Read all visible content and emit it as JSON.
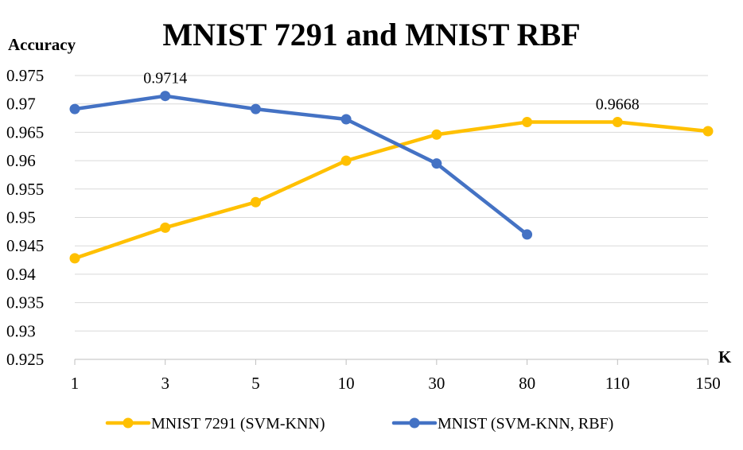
{
  "chart_data": {
    "type": "line",
    "title": "MNIST 7291 and MNIST RBF",
    "ylabel": "Accuracy",
    "xlabel": "K",
    "categories": [
      "1",
      "3",
      "5",
      "10",
      "30",
      "80",
      "110",
      "150"
    ],
    "ylim": [
      0.925,
      0.975
    ],
    "yticks": [
      "0.925",
      "0.93",
      "0.935",
      "0.94",
      "0.945",
      "0.95",
      "0.955",
      "0.96",
      "0.965",
      "0.97",
      "0.975"
    ],
    "grid": true,
    "legend_position": "bottom",
    "series": [
      {
        "name": "MNIST 7291 (SVM-KNN)",
        "color": "#FFC000",
        "values": [
          0.9428,
          0.9482,
          0.9527,
          0.96,
          0.9646,
          0.9668,
          0.9668,
          0.9652
        ],
        "data_labels": [
          null,
          null,
          null,
          null,
          null,
          null,
          "0.9668",
          null
        ]
      },
      {
        "name": "MNIST (SVM-KNN, RBF)",
        "color": "#4472C4",
        "values": [
          0.9691,
          0.9714,
          0.9691,
          0.9673,
          0.9595,
          0.947,
          null,
          null
        ],
        "data_labels": [
          null,
          "0.9714",
          null,
          null,
          null,
          null,
          null,
          null
        ]
      }
    ]
  }
}
